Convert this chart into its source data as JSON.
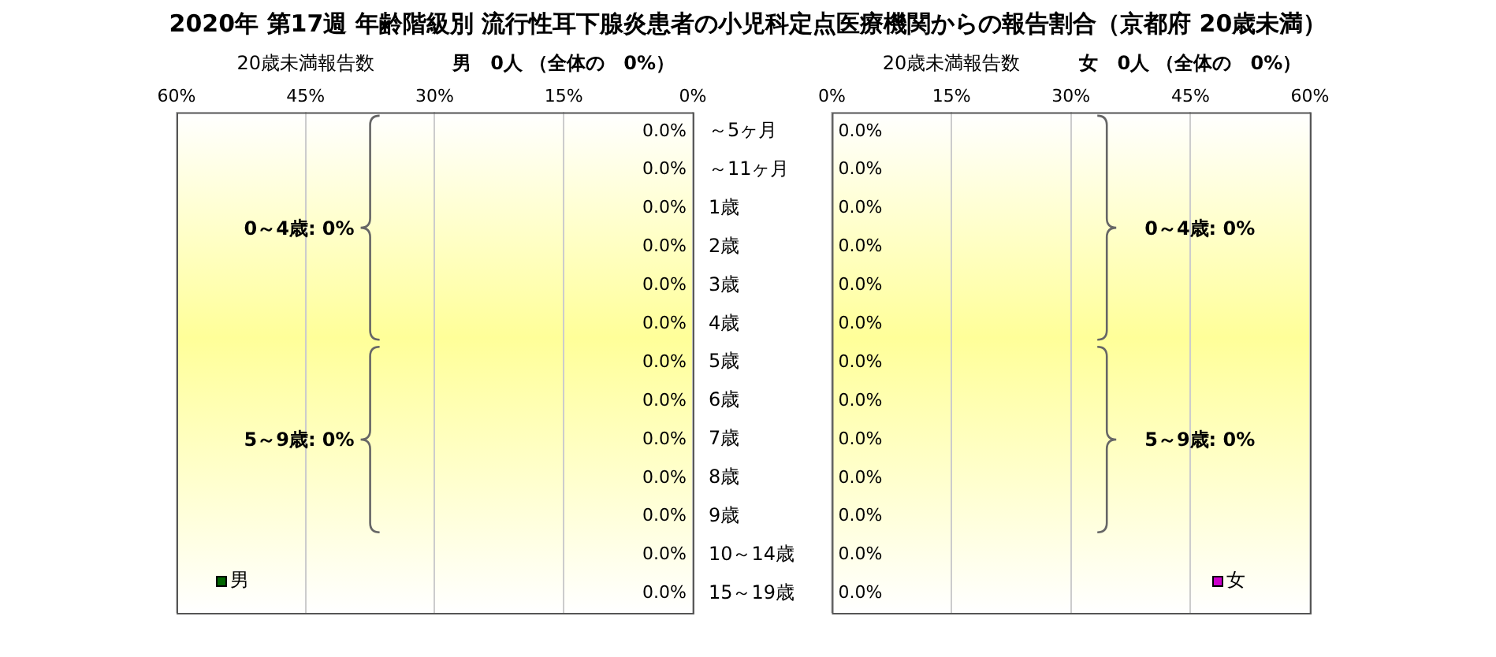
{
  "chart_data": [
    {
      "type": "bar",
      "orientation": "horizontal",
      "title": "2020年 第17週 年齢階級別 流行性耳下腺炎患者の小児科定点医療機関からの報告割合（京都府 20歳未満）",
      "xlabel": "20歳未満報告数",
      "subtitle": "男　0人 （全体の　0%）",
      "categories": [
        "～5ヶ月",
        "～11ヶ月",
        "1歳",
        "2歳",
        "3歳",
        "4歳",
        "5歳",
        "6歳",
        "7歳",
        "8歳",
        "9歳",
        "10～14歳",
        "15～19歳"
      ],
      "series": [
        {
          "name": "男",
          "color": "#006400",
          "values": [
            0,
            0,
            0,
            0,
            0,
            0,
            0,
            0,
            0,
            0,
            0,
            0,
            0
          ],
          "value_labels": [
            "0.0%",
            "0.0%",
            "0.0%",
            "0.0%",
            "0.0%",
            "0.0%",
            "0.0%",
            "0.0%",
            "0.0%",
            "0.0%",
            "0.0%",
            "0.0%",
            "0.0%"
          ]
        }
      ],
      "xlim": [
        60,
        0
      ],
      "xticks": [
        {
          "value": 60,
          "label": "60%"
        },
        {
          "value": 45,
          "label": "45%"
        },
        {
          "value": 30,
          "label": "30%"
        },
        {
          "value": 15,
          "label": "15%"
        },
        {
          "value": 0,
          "label": "0%"
        }
      ],
      "grid": "x",
      "legend": "bottom left",
      "annotations": [
        "0～4歳: 0%",
        "5～9歳: 0%"
      ]
    },
    {
      "type": "bar",
      "orientation": "horizontal",
      "xlabel": "20歳未満報告数",
      "subtitle": "女　0人 （全体の　0%）",
      "categories": [
        null,
        null,
        null,
        null,
        null,
        null,
        null,
        null,
        null,
        null,
        null,
        null,
        null
      ],
      "series": [
        {
          "name": "女",
          "color": "#cc00cc",
          "values": [
            0,
            0,
            0,
            0,
            0,
            0,
            0,
            0,
            0,
            0,
            0,
            0,
            0
          ],
          "value_labels": [
            "0.0%",
            "0.0%",
            "0.0%",
            "0.0%",
            "0.0%",
            "0.0%",
            "0.0%",
            "0.0%",
            "0.0%",
            "0.0%",
            "0.0%",
            "0.0%",
            "0.0%"
          ]
        }
      ],
      "xlim": [
        0,
        60
      ],
      "xticks": [
        {
          "value": 0,
          "label": "0%"
        },
        {
          "value": 15,
          "label": "15%"
        },
        {
          "value": 30,
          "label": "30%"
        },
        {
          "value": 45,
          "label": "45%"
        },
        {
          "value": 60,
          "label": "60%"
        }
      ],
      "grid": "x",
      "legend": "bottom right",
      "tick_labels": "x",
      "annotations": [
        "0～4歳: 0%",
        "5～9歳: 0%"
      ]
    }
  ]
}
